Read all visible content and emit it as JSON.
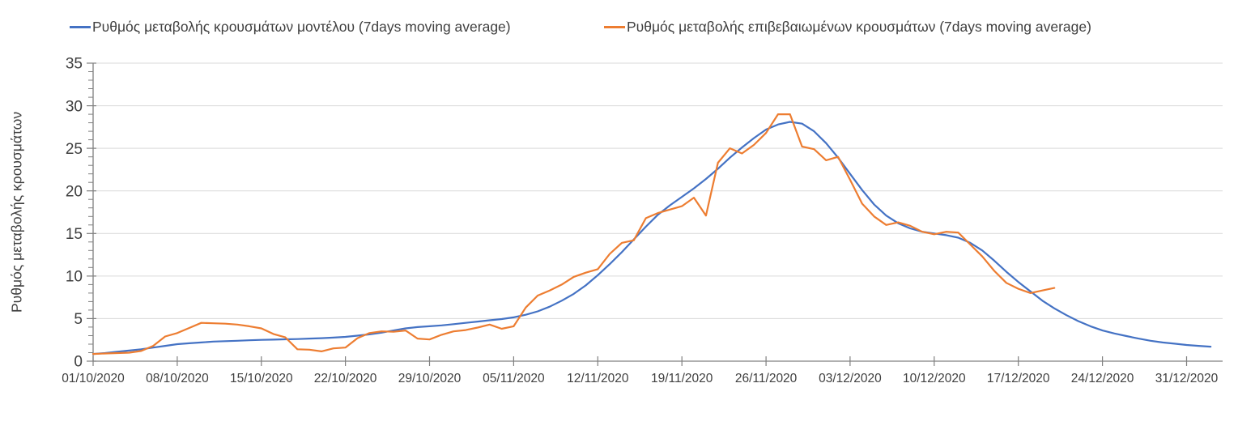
{
  "chart_data": {
    "type": "line",
    "title": "",
    "ylabel": "Ρυθμός μεταβολής κρουσμάτων",
    "xlabel": "",
    "ylim": [
      0,
      35
    ],
    "xlim": [
      0,
      94
    ],
    "y_major_step": 5,
    "y_minor_step": 1,
    "grid": "horizontal",
    "grid_color": "#d9d9d9",
    "axis_color": "#808080",
    "tick_label_color": "#404040",
    "y_tick_labels": [
      "0",
      "5",
      "10",
      "15",
      "20",
      "25",
      "30",
      "35"
    ],
    "y_tick_values": [
      0,
      5,
      10,
      15,
      20,
      25,
      30,
      35
    ],
    "x_tick_labels": [
      "01/10/2020",
      "08/10/2020",
      "15/10/2020",
      "22/10/2020",
      "29/10/2020",
      "05/11/2020",
      "12/11/2020",
      "19/11/2020",
      "26/11/2020",
      "03/12/2020",
      "10/12/2020",
      "17/12/2020",
      "24/12/2020",
      "31/12/2020"
    ],
    "x_tick_positions": [
      0,
      7,
      14,
      21,
      28,
      35,
      42,
      49,
      56,
      63,
      70,
      77,
      84,
      91
    ],
    "x_unit": "days, daily points starting 01/10/2020",
    "legend_position": "top",
    "series": [
      {
        "name": "Ρυθμός μεταβολής κρουσμάτων μοντέλου (7days moving average)",
        "color": "#4472C4",
        "x_start": 0,
        "x_step": 1,
        "values": [
          0.85,
          0.95,
          1.1,
          1.25,
          1.4,
          1.6,
          1.8,
          2.0,
          2.1,
          2.2,
          2.3,
          2.35,
          2.4,
          2.45,
          2.5,
          2.53,
          2.57,
          2.6,
          2.65,
          2.7,
          2.77,
          2.85,
          3.0,
          3.15,
          3.35,
          3.6,
          3.85,
          4.0,
          4.1,
          4.2,
          4.35,
          4.5,
          4.65,
          4.8,
          4.95,
          5.15,
          5.45,
          5.85,
          6.4,
          7.1,
          7.9,
          8.9,
          10.1,
          11.4,
          12.8,
          14.3,
          15.8,
          17.2,
          18.3,
          19.3,
          20.3,
          21.4,
          22.6,
          23.9,
          25.1,
          26.2,
          27.2,
          27.8,
          28.1,
          27.9,
          27.0,
          25.6,
          23.9,
          22.0,
          20.1,
          18.4,
          17.1,
          16.2,
          15.6,
          15.2,
          15.0,
          14.8,
          14.5,
          13.9,
          13.0,
          11.8,
          10.5,
          9.3,
          8.2,
          7.1,
          6.2,
          5.4,
          4.7,
          4.1,
          3.6,
          3.25,
          2.95,
          2.65,
          2.4,
          2.2,
          2.05,
          1.9,
          1.8,
          1.7
        ]
      },
      {
        "name": "Ρυθμός μεταβολής επιβεβαιωμένων κρουσμάτων (7days moving average)",
        "color": "#ED7D31",
        "x_start": 0,
        "x_step": 1,
        "values": [
          0.85,
          0.9,
          0.95,
          1.0,
          1.2,
          1.8,
          2.9,
          3.3,
          3.9,
          4.5,
          4.45,
          4.4,
          4.3,
          4.1,
          3.85,
          3.2,
          2.8,
          1.4,
          1.35,
          1.15,
          1.5,
          1.6,
          2.7,
          3.3,
          3.5,
          3.45,
          3.6,
          2.65,
          2.55,
          3.1,
          3.5,
          3.65,
          3.95,
          4.3,
          3.8,
          4.1,
          6.3,
          7.7,
          8.3,
          9.0,
          9.9,
          10.4,
          10.8,
          12.6,
          13.9,
          14.2,
          16.8,
          17.4,
          17.8,
          18.2,
          19.2,
          17.1,
          23.3,
          25.0,
          24.4,
          25.4,
          26.8,
          29.0,
          29.0,
          25.2,
          24.9,
          23.6,
          24.0,
          21.3,
          18.5,
          17.0,
          16.0,
          16.3,
          15.9,
          15.2,
          14.9,
          15.2,
          15.1,
          13.7,
          12.3,
          10.6,
          9.2,
          8.5,
          8.0,
          8.3,
          8.6
        ]
      }
    ]
  }
}
